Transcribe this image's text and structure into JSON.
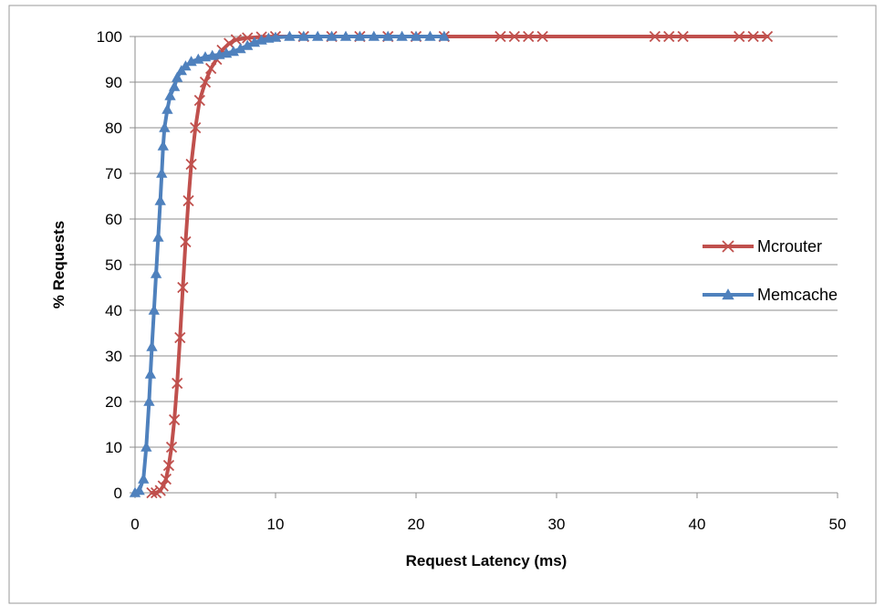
{
  "chart_data": {
    "type": "line",
    "title": "",
    "xlabel": "Request Latency (ms)",
    "ylabel": "% Requests",
    "xlim": [
      0,
      50
    ],
    "ylim": [
      0,
      100
    ],
    "x_ticks": [
      "0",
      "10",
      "20",
      "30",
      "40",
      "50"
    ],
    "y_ticks": [
      "0",
      "10",
      "20",
      "30",
      "40",
      "50",
      "60",
      "70",
      "80",
      "90",
      "100"
    ],
    "grid": "horizontal",
    "legend_position": "right",
    "series": [
      {
        "name": "Mcrouter",
        "color": "#c0504d",
        "marker": "x",
        "points": [
          [
            1.2,
            0
          ],
          [
            1.5,
            0
          ],
          [
            1.8,
            0.5
          ],
          [
            2.0,
            1.5
          ],
          [
            2.2,
            3
          ],
          [
            2.4,
            6
          ],
          [
            2.6,
            10
          ],
          [
            2.8,
            16
          ],
          [
            3.0,
            24
          ],
          [
            3.2,
            34
          ],
          [
            3.4,
            45
          ],
          [
            3.6,
            55
          ],
          [
            3.8,
            64
          ],
          [
            4.0,
            72
          ],
          [
            4.3,
            80
          ],
          [
            4.6,
            86
          ],
          [
            5.0,
            90
          ],
          [
            5.4,
            93
          ],
          [
            5.8,
            95
          ],
          [
            6.2,
            97
          ],
          [
            6.7,
            98.5
          ],
          [
            7.2,
            99.3
          ],
          [
            8.0,
            99.7
          ],
          [
            9.0,
            99.9
          ],
          [
            10.0,
            100
          ],
          [
            12,
            100
          ],
          [
            14,
            100
          ],
          [
            16,
            100
          ],
          [
            18,
            100
          ],
          [
            20,
            100
          ],
          [
            22,
            100
          ],
          [
            26,
            100
          ],
          [
            27,
            100
          ],
          [
            28,
            100
          ],
          [
            29,
            100
          ],
          [
            37,
            100
          ],
          [
            38,
            100
          ],
          [
            39,
            100
          ],
          [
            43,
            100
          ],
          [
            44,
            100
          ],
          [
            45,
            100
          ]
        ]
      },
      {
        "name": "Memcache",
        "color": "#4f81bd",
        "marker": "triangle",
        "points": [
          [
            0,
            0
          ],
          [
            0.3,
            0.5
          ],
          [
            0.6,
            3
          ],
          [
            0.8,
            10
          ],
          [
            1.0,
            20
          ],
          [
            1.1,
            26
          ],
          [
            1.2,
            32
          ],
          [
            1.35,
            40
          ],
          [
            1.5,
            48
          ],
          [
            1.65,
            56
          ],
          [
            1.8,
            64
          ],
          [
            1.9,
            70
          ],
          [
            2.0,
            76
          ],
          [
            2.1,
            80
          ],
          [
            2.3,
            84
          ],
          [
            2.5,
            87
          ],
          [
            2.8,
            89
          ],
          [
            3.0,
            91
          ],
          [
            3.3,
            92.5
          ],
          [
            3.6,
            93.5
          ],
          [
            4.0,
            94.5
          ],
          [
            4.5,
            95
          ],
          [
            5.0,
            95.5
          ],
          [
            5.5,
            95.8
          ],
          [
            6.0,
            96
          ],
          [
            6.5,
            96.3
          ],
          [
            7.0,
            96.7
          ],
          [
            7.5,
            97.3
          ],
          [
            8.0,
            98
          ],
          [
            8.5,
            98.7
          ],
          [
            9.0,
            99.2
          ],
          [
            9.5,
            99.6
          ],
          [
            10,
            99.8
          ],
          [
            11,
            100
          ],
          [
            12,
            100
          ],
          [
            13,
            100
          ],
          [
            14,
            100
          ],
          [
            15,
            100
          ],
          [
            16,
            100
          ],
          [
            17,
            100
          ],
          [
            18,
            100
          ],
          [
            19,
            100
          ],
          [
            20,
            100
          ],
          [
            21,
            100
          ],
          [
            22,
            100
          ]
        ]
      }
    ]
  }
}
